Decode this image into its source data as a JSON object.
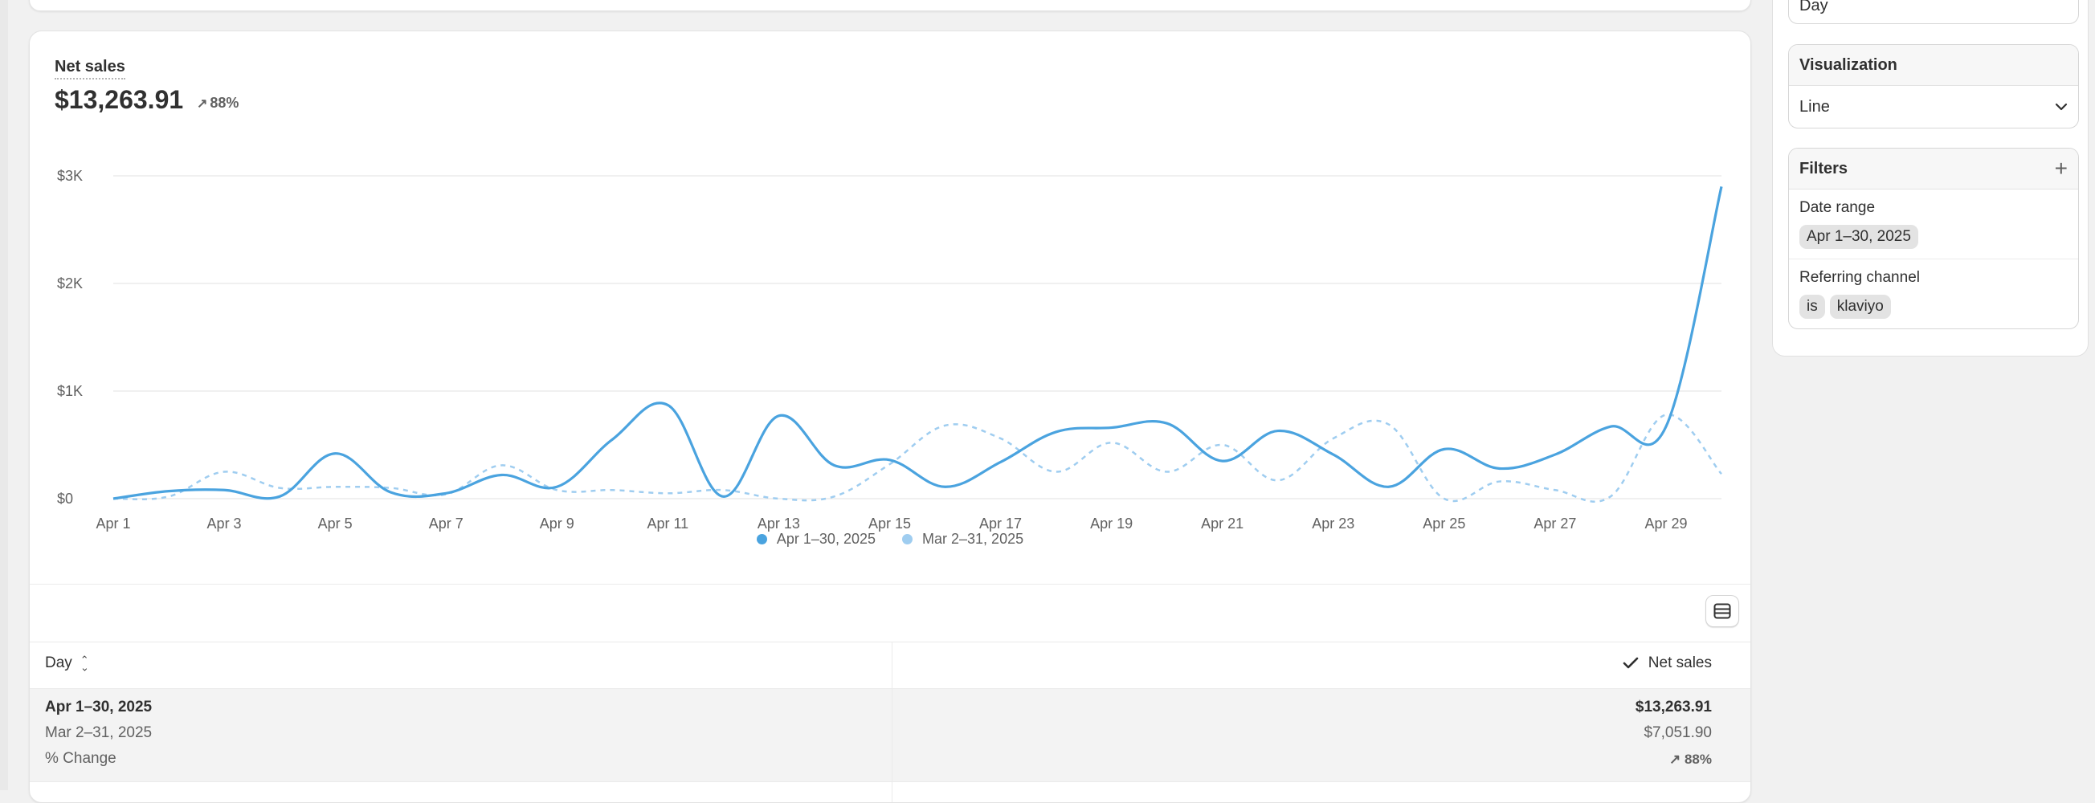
{
  "sidebar_panel": {
    "group_by_value": "Day",
    "visualization": {
      "title": "Visualization",
      "value": "Line"
    },
    "filters": {
      "title": "Filters",
      "items": [
        {
          "label": "Date range",
          "pills": [
            "Apr 1–30, 2025"
          ]
        },
        {
          "label": "Referring channel",
          "pills": [
            "is",
            "klaviyo"
          ]
        }
      ]
    }
  },
  "metric": {
    "label": "Net sales",
    "value": "$13,263.91",
    "change": "88%"
  },
  "legend": [
    "Apr 1–30, 2025",
    "Mar 2–31, 2025"
  ],
  "colors": {
    "primary": "#4aa3df",
    "secondary": "#9fcdf0",
    "grid": "#ebebeb",
    "axis_text": "#616161"
  },
  "chart_data": {
    "type": "line",
    "y_ticks": [
      "$0",
      "$1K",
      "$2K",
      "$3K"
    ],
    "ylim": [
      0,
      3000
    ],
    "x_tick_labels": [
      "Apr 1",
      "Apr 3",
      "Apr 5",
      "Apr 7",
      "Apr 9",
      "Apr 11",
      "Apr 13",
      "Apr 15",
      "Apr 17",
      "Apr 19",
      "Apr 21",
      "Apr 23",
      "Apr 25",
      "Apr 27",
      "Apr 29"
    ],
    "x": [
      "Apr 1",
      "Apr 2",
      "Apr 3",
      "Apr 4",
      "Apr 5",
      "Apr 6",
      "Apr 7",
      "Apr 8",
      "Apr 9",
      "Apr 10",
      "Apr 11",
      "Apr 12",
      "Apr 13",
      "Apr 14",
      "Apr 15",
      "Apr 16",
      "Apr 17",
      "Apr 18",
      "Apr 19",
      "Apr 20",
      "Apr 21",
      "Apr 22",
      "Apr 23",
      "Apr 24",
      "Apr 25",
      "Apr 26",
      "Apr 27",
      "Apr 28",
      "Apr 29",
      "Apr 30"
    ],
    "series": [
      {
        "name": "Apr 1–30, 2025",
        "style": "solid",
        "values": [
          0,
          70,
          80,
          20,
          420,
          60,
          50,
          220,
          110,
          550,
          870,
          20,
          770,
          310,
          360,
          110,
          340,
          620,
          660,
          700,
          350,
          630,
          410,
          110,
          460,
          280,
          410,
          670,
          670,
          2900
        ]
      },
      {
        "name": "Mar 2–31, 2025",
        "style": "dashed",
        "values": [
          0,
          20,
          250,
          100,
          110,
          100,
          40,
          310,
          80,
          80,
          50,
          80,
          0,
          20,
          320,
          680,
          560,
          250,
          520,
          250,
          500,
          170,
          560,
          690,
          0,
          160,
          80,
          20,
          780,
          230
        ]
      }
    ]
  },
  "table": {
    "col_day": "Day",
    "col_sales": "Net sales",
    "rows": [
      {
        "left": "Apr 1–30, 2025",
        "right": "$13,263.91"
      },
      {
        "left": "Mar 2–31, 2025",
        "right": "$7,051.90"
      },
      {
        "left": "% Change",
        "right": "88%"
      }
    ]
  }
}
